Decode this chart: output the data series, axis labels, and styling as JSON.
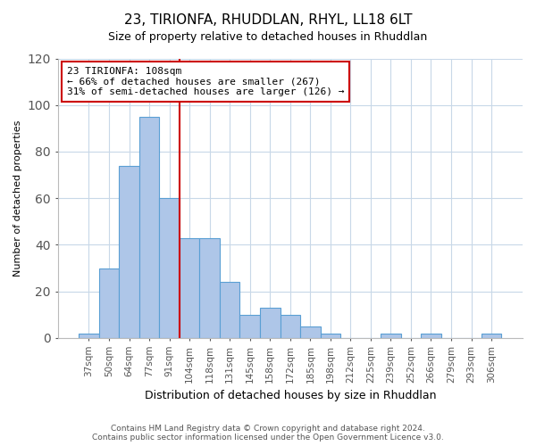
{
  "title": "23, TIRIONFA, RHUDDLAN, RHYL, LL18 6LT",
  "subtitle": "Size of property relative to detached houses in Rhuddlan",
  "xlabel": "Distribution of detached houses by size in Rhuddlan",
  "ylabel": "Number of detached properties",
  "bar_labels": [
    "37sqm",
    "50sqm",
    "64sqm",
    "77sqm",
    "91sqm",
    "104sqm",
    "118sqm",
    "131sqm",
    "145sqm",
    "158sqm",
    "172sqm",
    "185sqm",
    "198sqm",
    "212sqm",
    "225sqm",
    "239sqm",
    "252sqm",
    "266sqm",
    "279sqm",
    "293sqm",
    "306sqm"
  ],
  "bar_values": [
    2,
    30,
    74,
    95,
    60,
    43,
    43,
    24,
    10,
    13,
    10,
    5,
    2,
    0,
    0,
    2,
    0,
    2,
    0,
    0,
    2
  ],
  "bar_color": "#aec6e8",
  "bar_edge_color": "#5a9fd4",
  "property_line_index": 5,
  "annotation_text_line1": "23 TIRIONFA: 108sqm",
  "annotation_text_line2": "← 66% of detached houses are smaller (267)",
  "annotation_text_line3": "31% of semi-detached houses are larger (126) →",
  "annotation_box_color": "#ffffff",
  "annotation_box_edge_color": "#cc0000",
  "line_color": "#cc0000",
  "ylim": [
    0,
    120
  ],
  "yticks": [
    0,
    20,
    40,
    60,
    80,
    100,
    120
  ],
  "footer_line1": "Contains HM Land Registry data © Crown copyright and database right 2024.",
  "footer_line2": "Contains public sector information licensed under the Open Government Licence v3.0.",
  "background_color": "#ffffff",
  "grid_color": "#c8d8e8",
  "title_fontsize": 11,
  "subtitle_fontsize": 9,
  "xlabel_fontsize": 9,
  "ylabel_fontsize": 8,
  "tick_fontsize": 7.5,
  "annotation_fontsize": 8,
  "footer_fontsize": 6.5
}
